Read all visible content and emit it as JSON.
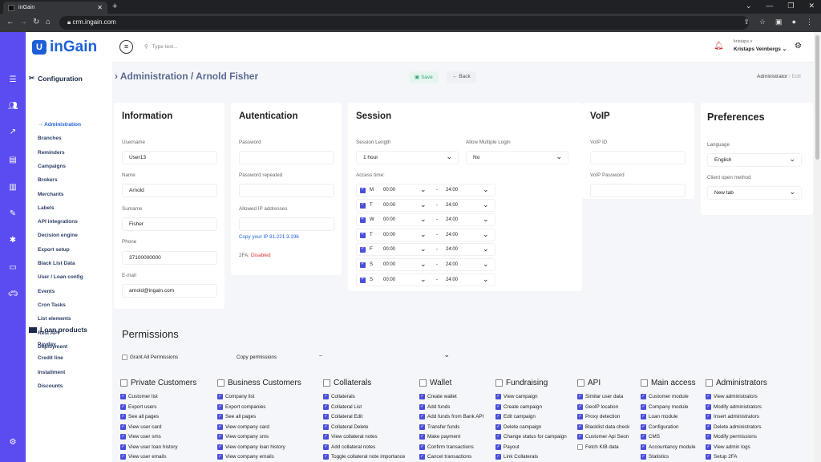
{
  "browser": {
    "tab_title": "inGain",
    "url": "crm.ingain.com"
  },
  "logo": {
    "mark": "U",
    "text": "inGain"
  },
  "sidebar": {
    "configuration_title": "Configuration",
    "items": [
      "Administration",
      "Branches",
      "Reminders",
      "Campaigns",
      "Brokers",
      "Merchants",
      "Labels",
      "API integrations",
      "Decision engine",
      "Export setup",
      "Black List Data",
      "User / Loan config",
      "Events",
      "Cron Tasks",
      "List elements",
      "Rest API",
      "Deployment"
    ],
    "loan_title": "Loan products",
    "loan_items": [
      "Payday",
      "Credit line",
      "Installment",
      "Discounts"
    ]
  },
  "topbar": {
    "search_placeholder": "Type text...",
    "user_login": "kristaps.v",
    "user_name": "Kristaps Veinbergs"
  },
  "page": {
    "title": "Administration / Arnold Fisher",
    "save": "Save",
    "back": "Back",
    "crumb1": "Administrator",
    "crumb_sep": "/",
    "crumb2": "Edit"
  },
  "information": {
    "title": "Information",
    "username_label": "Username",
    "username": "User13",
    "name_label": "Name",
    "name": "Arnold",
    "surname_label": "Surname",
    "surname": "Fisher",
    "phone_label": "Phone",
    "phone": "37100000000",
    "email_label": "E-mail",
    "email": "arnold@ingain.com"
  },
  "auth": {
    "title": "Autentication",
    "password_label": "Password",
    "password_repeat_label": "Password repeated",
    "allowed_ip_label": "Allowed IP addresses",
    "copy_ip": "Copy your IP 81.221.3.196",
    "twofa_label": "2FA:",
    "twofa_value": "Disabled"
  },
  "session": {
    "title": "Session",
    "length_label": "Session Length",
    "length": "1 hour",
    "multi_label": "Allow Multiple Login",
    "multi": "No",
    "access_label": "Access time:",
    "days": [
      {
        "d": "M",
        "from": "00:00",
        "to": "24:00"
      },
      {
        "d": "T",
        "from": "00:00",
        "to": "24:00"
      },
      {
        "d": "W",
        "from": "00:00",
        "to": "24:00"
      },
      {
        "d": "T",
        "from": "00:00",
        "to": "24:00"
      },
      {
        "d": "F",
        "from": "00:00",
        "to": "24:00"
      },
      {
        "d": "S",
        "from": "00:00",
        "to": "24:00"
      },
      {
        "d": "S",
        "from": "00:00",
        "to": "24:00"
      }
    ],
    "dash": "-"
  },
  "voip": {
    "title": "VoIP",
    "id_label": "VoIP ID",
    "password_label": "VoIP Password"
  },
  "preferences": {
    "title": "Preferences",
    "language_label": "Language",
    "language": "English",
    "open_label": "Client open method",
    "open": "New tab"
  },
  "permissions": {
    "title": "Permissions",
    "grant_all": "Grant All Permissions",
    "copy_label": "Copy permissions",
    "copy_value": "--",
    "groups": [
      {
        "name": "Private Customers",
        "items": [
          "Customer list",
          "Export users",
          "See all pages",
          "View user card",
          "View user sms",
          "View user loan history",
          "View user emails"
        ]
      },
      {
        "name": "Business Customers",
        "items": [
          "Company list",
          "Export companies",
          "See all pages",
          "View company card",
          "View company sms",
          "View company loan history",
          "View company emails"
        ]
      },
      {
        "name": "Collaterals",
        "items": [
          "Collaterals",
          "Collateral List",
          "Collateral Edit",
          "Collateral Delete",
          "View collateral notes",
          "Add collateral notes",
          "Toggle collateral note importance"
        ]
      },
      {
        "name": "Wallet",
        "items": [
          "Create wallet",
          "Add funds",
          "Add funds from Bank API",
          "Transfer funds",
          "Make payment",
          "Confirm transactions",
          "Cancel transactions"
        ]
      },
      {
        "name": "Fundraising",
        "items": [
          "View campaign",
          "Create campaign",
          "Edit campaign",
          "Delete campaign",
          "Change status for campaign",
          "Payout",
          "Link Collaterals"
        ]
      },
      {
        "name": "API",
        "items": [
          "Similar user data",
          "GeoIP location",
          "Proxy detection",
          "Blacklist data check",
          "Customer Api Seon",
          "Fetch KIB data"
        ]
      },
      {
        "name": "Main access",
        "items": [
          "Customer module",
          "Company module",
          "Loan module",
          "Configuration",
          "CMS",
          "Accountancy module",
          "Statistics"
        ]
      },
      {
        "name": "Administrators",
        "items": [
          "View administrators",
          "Modify administrators",
          "Insert administrators",
          "Delete administrators",
          "Modify permissions",
          "View admin logs",
          "Setup 2FA"
        ]
      }
    ]
  },
  "colors": {
    "accent": "#5b4cf2",
    "brand": "#1e5fd8",
    "disabled": "#d33"
  }
}
